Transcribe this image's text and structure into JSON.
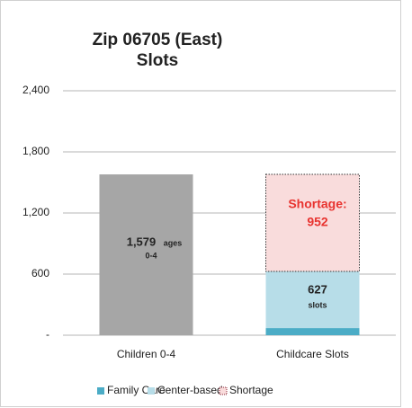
{
  "chart_data": {
    "type": "stacked_bar",
    "title": [
      "Zip 06705 (East)",
      "Slots"
    ],
    "categories": [
      "Children 0-4",
      "Childcare Slots"
    ],
    "series": [
      {
        "color": "#a6a6a6",
        "values": [
          1579,
          null
        ],
        "value_labels": [
          "1,579",
          null
        ]
      },
      {
        "name": "Family Care",
        "color": "#4bacc6",
        "values": [
          null,
          70
        ]
      },
      {
        "name": "Center-based",
        "color": "#b7dde8",
        "values": [
          null,
          557
        ]
      },
      {
        "name": "Shortage",
        "color": "#f9dcdc",
        "values": [
          null,
          952
        ],
        "value_labels": [
          null,
          "952"
        ],
        "pattern": "dotted"
      }
    ],
    "annotations": [
      "ages",
      "0-4",
      "627",
      "slots",
      "Shortage:"
    ],
    "ylim": [
      0,
      2400
    ],
    "yticks": [
      {
        "value": 0,
        "label": "-"
      },
      600,
      {
        "value": 1200,
        "label": "1,200"
      },
      {
        "value": 1800,
        "label": "1,800"
      },
      {
        "value": 2400,
        "label": "2,400"
      }
    ],
    "grid": true,
    "legend": "bottom"
  }
}
